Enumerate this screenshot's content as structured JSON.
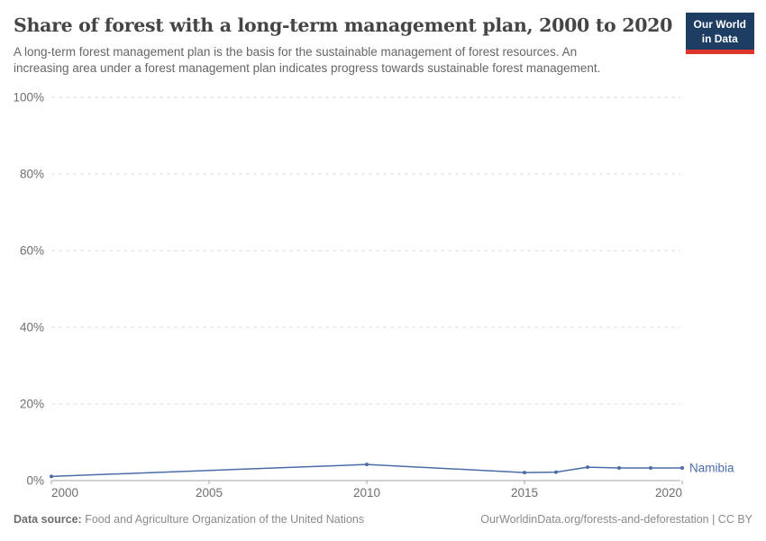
{
  "header": {
    "title": "Share of forest with a long-term management plan, 2000 to 2020",
    "subtitle_line1": "A long-term forest management plan is the basis for the sustainable management of forest resources. An",
    "subtitle_line2": "increasing area under a forest management plan indicates progress towards sustainable forest management.",
    "logo": {
      "line1": "Our World",
      "line2": "in Data",
      "bg_color": "#1d3d63",
      "stripe_color": "#dc352c"
    }
  },
  "chart_data": {
    "type": "line",
    "title": "Share of forest with a long-term management plan, 2000 to 2020",
    "xlabel": "",
    "ylabel": "",
    "xlim": [
      2000,
      2020
    ],
    "ylim": [
      0,
      100
    ],
    "x_ticks": [
      2000,
      2005,
      2010,
      2015,
      2020
    ],
    "y_ticks": [
      0,
      20,
      40,
      60,
      80,
      100
    ],
    "y_tick_suffix": "%",
    "grid": "horizontal dashed",
    "legend_position": "end-of-line label",
    "series": [
      {
        "name": "Namibia",
        "color": "#4a6da8",
        "points": [
          {
            "x": 2000,
            "y": 1.1
          },
          {
            "x": 2010,
            "y": 4.2
          },
          {
            "x": 2015,
            "y": 2.1
          },
          {
            "x": 2016,
            "y": 2.2
          },
          {
            "x": 2017,
            "y": 3.5
          },
          {
            "x": 2018,
            "y": 3.3
          },
          {
            "x": 2019,
            "y": 3.3
          },
          {
            "x": 2020,
            "y": 3.3
          }
        ]
      }
    ]
  },
  "axis_colors": {
    "gridline": "#dcdcdc",
    "axis_line": "#a3a3a3",
    "tick_label": "#6e6e6e"
  },
  "footer": {
    "source_label": "Data source:",
    "source_text": " Food and Agriculture Organization of the United Nations",
    "attribution": "OurWorldinData.org/forests-and-deforestation | CC BY"
  }
}
